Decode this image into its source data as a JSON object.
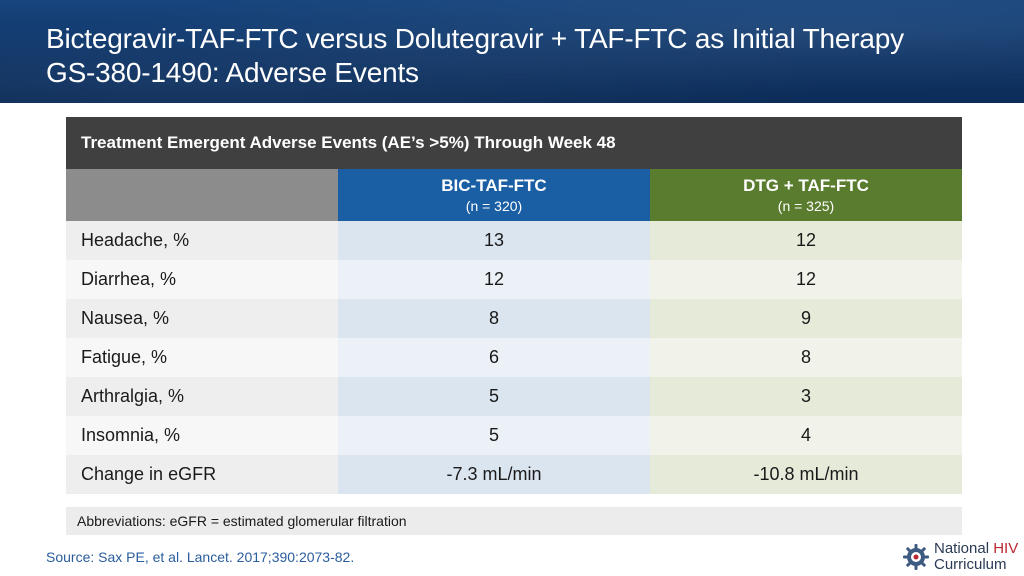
{
  "header": {
    "title_line1": "Bictegravir-TAF-FTC versus Dolutegravir + TAF-FTC as Initial Therapy",
    "title_line2": "GS-380-1490: Adverse Events"
  },
  "table": {
    "banner": "Treatment Emergent Adverse Events (AE’s >5%) Through Week 48",
    "columns": [
      {
        "name": "BIC-TAF-FTC",
        "n": "(n = 320)"
      },
      {
        "name": "DTG + TAF-FTC",
        "n": "(n = 325)"
      }
    ],
    "rows": [
      {
        "label": "Headache, %",
        "v1": "13",
        "v2": "12"
      },
      {
        "label": "Diarrhea, %",
        "v1": "12",
        "v2": "12"
      },
      {
        "label": "Nausea, %",
        "v1": "8",
        "v2": "9"
      },
      {
        "label": "Fatigue, %",
        "v1": "6",
        "v2": "8"
      },
      {
        "label": "Arthralgia, %",
        "v1": "5",
        "v2": "3"
      },
      {
        "label": "Insomnia, %",
        "v1": "5",
        "v2": "4"
      },
      {
        "label": "Change in eGFR",
        "v1": "-7.3 mL/min",
        "v2": "-10.8 mL/min"
      }
    ]
  },
  "abbreviations": "Abbreviations: eGFR = estimated glomerular filtration",
  "source": "Source: Sax PE, et al. Lancet. 2017;390:2073-82.",
  "logo": {
    "word1": "National",
    "word2": "HIV",
    "word3": "Curriculum",
    "icon": "gear-logo-icon"
  },
  "colors": {
    "bic": "#1a5ea4",
    "dtg": "#5a7c2e",
    "header": "#0f3567",
    "banner": "#404040"
  }
}
